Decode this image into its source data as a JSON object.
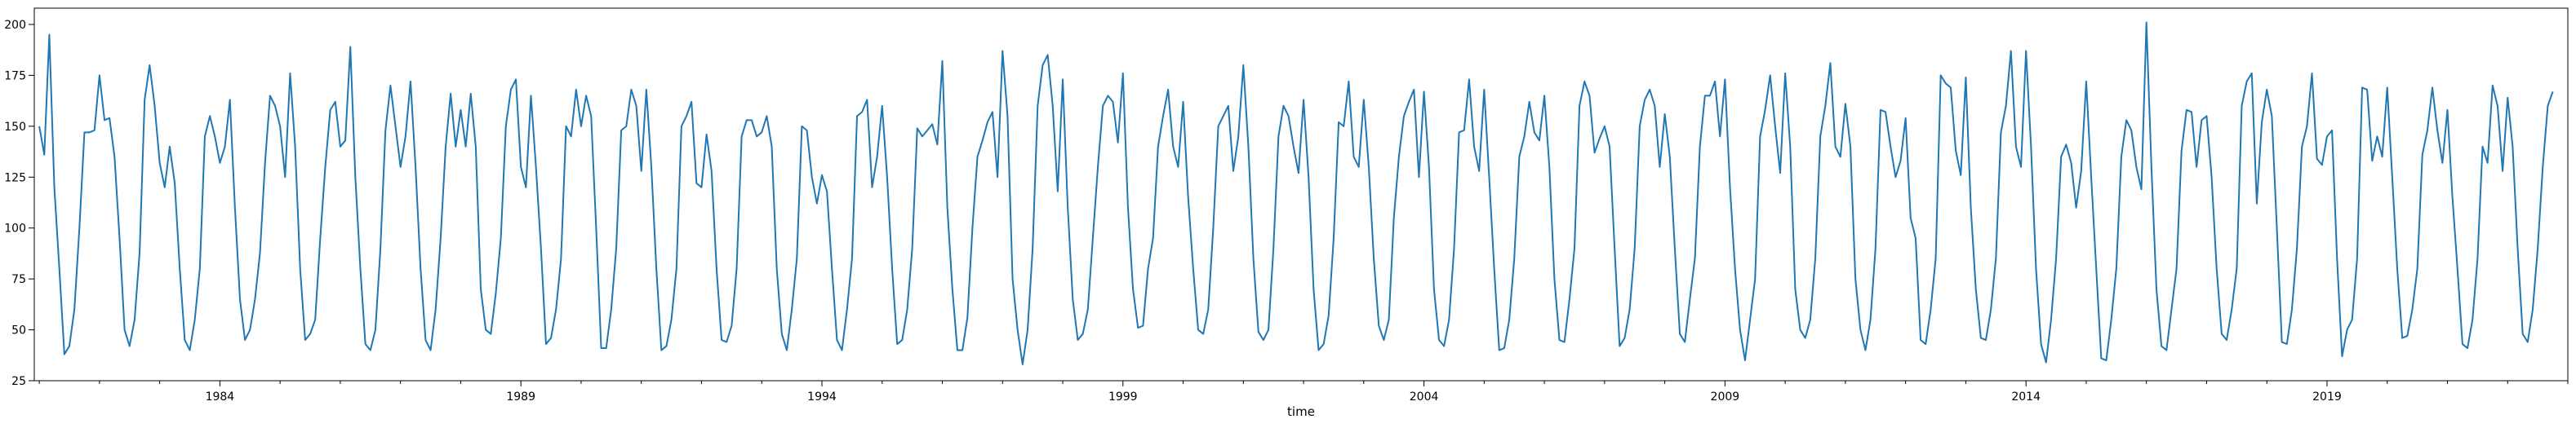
{
  "chart_data": {
    "type": "line",
    "title": "",
    "xlabel": "time",
    "ylabel": "",
    "x_tick_labels": [
      "1984",
      "1989",
      "1994",
      "1999",
      "2004",
      "2009",
      "2014",
      "2019"
    ],
    "y_tick_labels": [
      "25",
      "50",
      "75",
      "100",
      "125",
      "150",
      "175",
      "200"
    ],
    "xlim": [
      1980.917,
      2023.0
    ],
    "ylim": [
      25,
      208
    ],
    "x_ticks": [
      1984,
      1989,
      1994,
      1999,
      2004,
      2009,
      2014,
      2019
    ],
    "y_ticks": [
      25,
      50,
      75,
      100,
      125,
      150,
      175,
      200
    ],
    "grid": false,
    "series": [
      {
        "color": "#1f77b4",
        "x_start": "1981-01",
        "x_step": "month",
        "y": [
          150,
          136,
          195,
          120,
          80,
          38,
          42,
          60,
          100,
          147,
          147,
          148,
          175,
          153,
          154,
          135,
          95,
          50,
          42,
          55,
          88,
          163,
          180,
          160,
          132,
          120,
          140,
          122,
          80,
          45,
          40,
          55,
          80,
          145,
          155,
          145,
          132,
          140,
          163,
          110,
          65,
          45,
          50,
          65,
          88,
          132,
          165,
          160,
          150,
          125,
          176,
          140,
          80,
          45,
          48,
          55,
          95,
          130,
          158,
          162,
          140,
          143,
          189,
          125,
          80,
          43,
          40,
          50,
          90,
          148,
          170,
          150,
          130,
          145,
          172,
          130,
          80,
          45,
          40,
          60,
          95,
          140,
          166,
          140,
          158,
          140,
          166,
          140,
          70,
          50,
          48,
          68,
          95,
          150,
          168,
          173,
          130,
          120,
          165,
          130,
          90,
          43,
          46,
          60,
          85,
          150,
          145,
          168,
          150,
          165,
          155,
          100,
          41,
          41,
          60,
          90,
          148,
          150,
          168,
          160,
          128,
          168,
          130,
          80,
          40,
          42,
          55,
          80,
          150,
          155,
          162,
          122,
          120,
          146,
          128,
          80,
          45,
          44,
          52,
          80,
          145,
          153,
          153,
          145,
          147,
          155,
          140,
          80,
          48,
          40,
          60,
          85,
          150,
          148,
          125,
          112,
          126,
          118,
          80,
          45,
          40,
          60,
          85,
          155,
          157,
          163,
          120,
          135,
          160,
          125,
          80,
          43,
          45,
          60,
          90,
          149,
          145,
          148,
          151,
          141,
          182,
          110,
          70,
          40,
          40,
          56,
          100,
          135,
          143,
          152,
          157,
          125,
          187,
          155,
          75,
          50,
          33,
          50,
          90,
          160,
          180,
          185,
          160,
          118,
          173,
          110,
          65,
          45,
          48,
          60,
          95,
          130,
          160,
          165,
          162,
          142,
          176,
          110,
          70,
          51,
          52,
          80,
          95,
          140,
          155,
          168,
          140,
          130,
          162,
          115,
          80,
          50,
          48,
          60,
          100,
          150,
          155,
          160,
          128,
          145,
          180,
          140,
          85,
          49,
          45,
          50,
          90,
          145,
          160,
          155,
          140,
          127,
          163,
          125,
          70,
          40,
          43,
          57,
          95,
          152,
          150,
          172,
          135,
          130,
          163,
          130,
          85,
          52,
          45,
          55,
          105,
          135,
          155,
          162,
          168,
          125,
          167,
          130,
          70,
          45,
          42,
          55,
          90,
          147,
          148,
          173,
          140,
          128,
          168,
          125,
          80,
          40,
          41,
          55,
          85,
          135,
          145,
          162,
          147,
          143,
          165,
          130,
          75,
          45,
          44,
          65,
          90,
          160,
          172,
          165,
          137,
          144,
          150,
          140,
          90,
          42,
          46,
          60,
          90,
          150,
          163,
          168,
          160,
          130,
          156,
          135,
          90,
          48,
          44,
          65,
          85,
          140,
          165,
          165,
          172,
          145,
          173,
          120,
          80,
          50,
          35,
          55,
          75,
          145,
          158,
          175,
          150,
          127,
          176,
          140,
          70,
          50,
          46,
          55,
          85,
          145,
          160,
          181,
          140,
          135,
          161,
          140,
          75,
          50,
          40,
          55,
          90,
          158,
          157,
          140,
          125,
          133,
          154,
          105,
          95,
          45,
          43,
          60,
          85,
          175,
          171,
          169,
          138,
          126,
          174,
          110,
          70,
          46,
          45,
          60,
          85,
          147,
          160,
          187,
          140,
          130,
          187,
          140,
          80,
          43,
          34,
          55,
          85,
          135,
          141,
          132,
          110,
          128,
          172,
          125,
          80,
          36,
          35,
          55,
          80,
          135,
          153,
          148,
          130,
          119,
          201,
          130,
          70,
          42,
          40,
          60,
          80,
          138,
          158,
          157,
          130,
          153,
          155,
          125,
          80,
          48,
          45,
          60,
          80,
          160,
          172,
          176,
          112,
          152,
          168,
          155,
          100,
          44,
          43,
          60,
          90,
          140,
          150,
          176,
          134,
          131,
          145,
          148,
          85,
          37,
          50,
          55,
          85,
          169,
          168,
          133,
          145,
          135,
          169,
          125,
          80,
          46,
          47,
          60,
          80,
          136,
          148,
          169,
          148,
          132,
          158,
          115,
          80,
          43,
          41,
          55,
          85,
          140,
          132,
          170,
          160,
          128,
          164,
          140,
          90,
          48,
          44,
          60,
          90,
          130,
          160,
          167
        ]
      }
    ]
  }
}
